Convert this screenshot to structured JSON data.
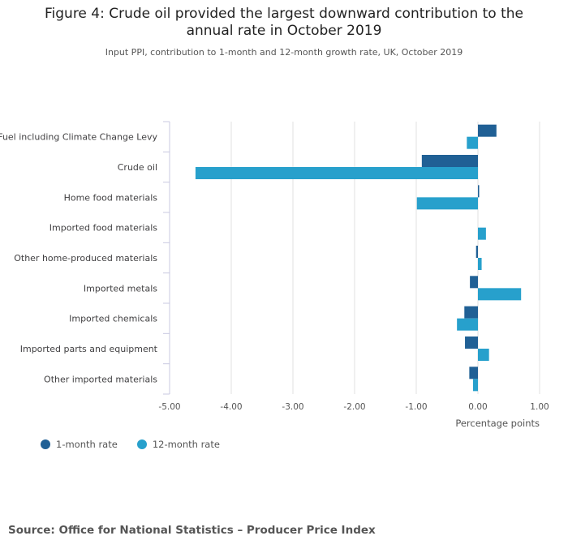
{
  "chart_data": {
    "type": "bar",
    "orientation": "horizontal",
    "title_line1": "Figure 4: Crude oil provided the largest downward contribution to the",
    "title_line2": "annual rate in October 2019",
    "subtitle": "Input PPI, contribution to 1-month and 12-month growth rate, UK, October 2019",
    "categories": [
      "Fuel including Climate Change Levy",
      "Crude oil",
      "Home food materials",
      "Imported food materials",
      "Other home-produced materials",
      "Imported metals",
      "Imported chemicals",
      "Imported parts and equipment",
      "Other imported materials"
    ],
    "series": [
      {
        "name": "1-month rate",
        "color": "#206095",
        "values": [
          0.3,
          -0.91,
          0.02,
          0.0,
          -0.03,
          -0.13,
          -0.22,
          -0.21,
          -0.14
        ]
      },
      {
        "name": "12-month rate",
        "color": "#27a0cc",
        "values": [
          -0.18,
          -4.58,
          -0.99,
          0.13,
          0.06,
          0.7,
          -0.34,
          0.18,
          -0.08
        ]
      }
    ],
    "xlabel": "Percentage points",
    "ylabel": "",
    "xlim": [
      -5,
      1
    ],
    "ticks": [
      "-5.00",
      "-4.00",
      "-3.00",
      "-2.00",
      "-1.00",
      "0.00",
      "1.00"
    ],
    "tick_values": [
      -5,
      -4,
      -3,
      -2,
      -1,
      0,
      1
    ],
    "legend_position": "bottom-left",
    "grid": true
  },
  "source": "Source: Office for National Statistics – Producer Price Index"
}
